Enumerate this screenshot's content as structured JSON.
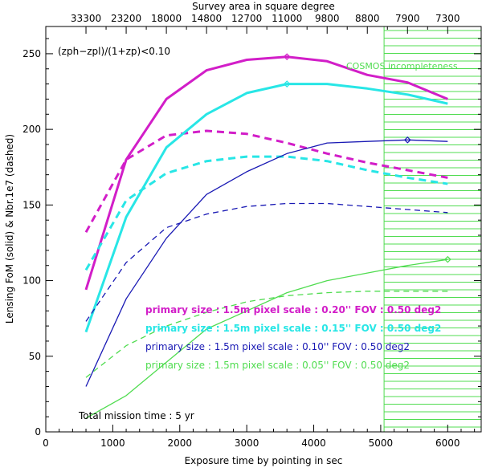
{
  "chart_data": {
    "type": "line",
    "title": "",
    "xlabel": "Exposure time by pointing in sec",
    "ylabel": "Lensing FoM (solid) & Nbr.1e7 (dashed)",
    "top_axis_label": "Survey area in square degree",
    "top_ticks": [
      {
        "x": 600,
        "label": "33300"
      },
      {
        "x": 1200,
        "label": "23200"
      },
      {
        "x": 1800,
        "label": "18000"
      },
      {
        "x": 2400,
        "label": "14800"
      },
      {
        "x": 3000,
        "label": "12700"
      },
      {
        "x": 3600,
        "label": "11000"
      },
      {
        "x": 4200,
        "label": "9800"
      },
      {
        "x": 4800,
        "label": "8800"
      },
      {
        "x": 5400,
        "label": "7900"
      },
      {
        "x": 6000,
        "label": "7300"
      }
    ],
    "xlim": [
      0,
      6500
    ],
    "ylim": [
      0,
      268
    ],
    "x_ticks": [
      0,
      1000,
      2000,
      3000,
      4000,
      5000,
      6000
    ],
    "y_ticks": [
      0,
      50,
      100,
      150,
      200,
      250
    ],
    "x": [
      600,
      1200,
      1800,
      2400,
      3000,
      3600,
      4200,
      4800,
      5400,
      6000
    ],
    "annotations": {
      "criterion": "(zph−zpl)/(1+zp)<0.10",
      "incompleteness": "COSMOS incompleteness",
      "mission_time": "Total mission time : 5 yr"
    },
    "incompleteness_region": {
      "x_start": 5050,
      "x_end": 6500
    },
    "series": [
      {
        "name": "primary size : 1.5m pixel scale : 0.20'' FOV : 0.50 deg2",
        "style": "solid",
        "color": "#d21ec8",
        "values": [
          94,
          180,
          220,
          239,
          246,
          248,
          245,
          236,
          231,
          220
        ],
        "marker_index": 5
      },
      {
        "name": "primary size : 1.5m pixel scale : 0.20'' FOV : 0.50 deg2 (Nbr)",
        "style": "dashed",
        "color": "#d21ec8",
        "values": [
          132,
          180,
          196,
          199,
          197,
          191,
          184,
          178,
          173,
          168
        ]
      },
      {
        "name": "primary size : 1.5m pixel scale : 0.15'' FOV : 0.50 deg2",
        "style": "solid",
        "color": "#28e6e6",
        "values": [
          66,
          142,
          188,
          210,
          224,
          230,
          230,
          227,
          223,
          217
        ],
        "marker_index": 5
      },
      {
        "name": "primary size : 1.5m pixel scale : 0.15'' FOV : 0.50 deg2 (Nbr)",
        "style": "dashed",
        "color": "#28e6e6",
        "values": [
          107,
          153,
          171,
          179,
          182,
          182,
          179,
          173,
          168,
          164
        ]
      },
      {
        "name": "primary size : 1.5m pixel scale : 0.10'' FOV : 0.50 deg2",
        "style": "solid",
        "color": "#1919b4",
        "values": [
          30,
          88,
          128,
          157,
          172,
          184,
          191,
          192,
          193,
          192
        ],
        "marker_index": 8
      },
      {
        "name": "primary size : 1.5m pixel scale : 0.10'' FOV : 0.50 deg2 (Nbr)",
        "style": "dashed",
        "color": "#1919b4",
        "values": [
          73,
          112,
          135,
          144,
          149,
          151,
          151,
          149,
          147,
          145
        ]
      },
      {
        "name": "primary size : 1.5m pixel scale : 0.05'' FOV : 0.50 deg2",
        "style": "solid",
        "color": "#50dc50",
        "values": [
          9,
          24,
          46,
          68,
          80,
          92,
          100,
          105,
          110,
          114
        ],
        "marker_index": 9
      },
      {
        "name": "primary size : 1.5m pixel scale : 0.05'' FOV : 0.50 deg2 (Nbr)",
        "style": "dashed",
        "color": "#50dc50",
        "values": [
          36,
          57,
          70,
          79,
          86,
          90,
          92,
          93,
          93,
          93
        ]
      }
    ],
    "legend": [
      {
        "text": "primary size : 1.5m pixel scale : 0.20'' FOV : 0.50 deg2",
        "color": "#d21ec8",
        "weight": "bold"
      },
      {
        "text": "primary size : 1.5m pixel scale : 0.15'' FOV : 0.50 deg2",
        "color": "#28e6e6",
        "weight": "bold"
      },
      {
        "text": "primary size : 1.5m pixel scale : 0.10'' FOV : 0.50 deg2",
        "color": "#1919b4",
        "weight": "normal"
      },
      {
        "text": "primary size : 1.5m pixel scale : 0.05'' FOV : 0.50 deg2",
        "color": "#50dc50",
        "weight": "normal"
      }
    ],
    "grid": false,
    "legend_placement": "lower-center"
  }
}
